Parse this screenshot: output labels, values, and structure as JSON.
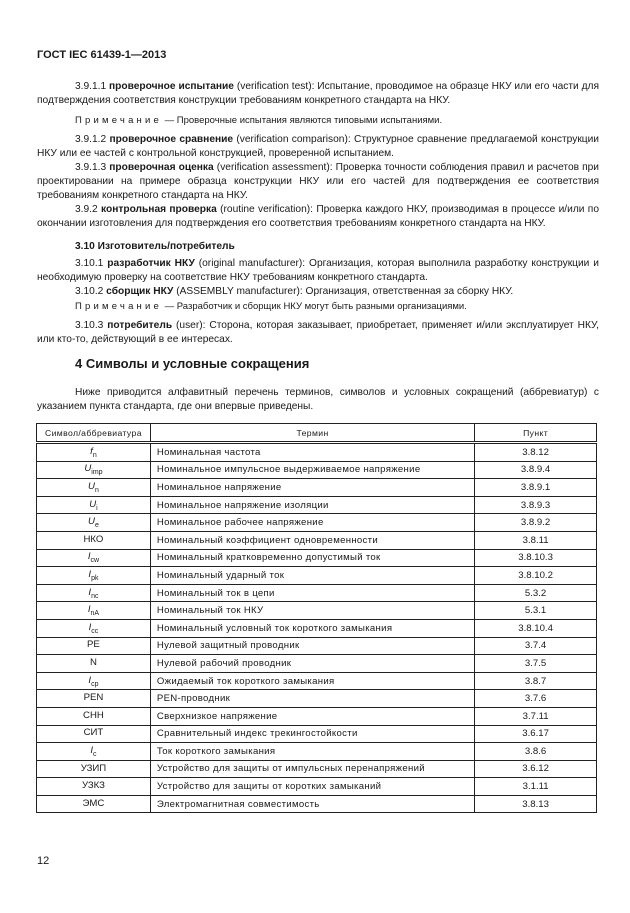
{
  "header": "ГОСТ IEC 61439-1—2013",
  "paragraphs": {
    "p3911": {
      "num": "3.9.1.1",
      "term": "проверочное испытание",
      "text": " (verification test): Испытание, проводимое на образце НКУ или его части для подтверждения соответствия конструкции требованиям конкретного стандарта на НКУ."
    },
    "note1": {
      "label": "Примечание",
      "text": " — Проверочные испытания являются типовыми испытаниями."
    },
    "p3912": {
      "num": "3.9.1.2",
      "term": "проверочное сравнение",
      "text": " (verification comparison): Структурное сравнение предлагаемой конструкции НКУ или ее частей с контрольной конструкцией, проверенной испытанием."
    },
    "p3913": {
      "num": "3.9.1.3",
      "term": "проверочная оценка",
      "text": " (verification assessment): Проверка точности соблюдения правил и расчетов при проектировании на примере образца конструкции НКУ или его частей для подтверждения ее соответствия требованиям конкретного стандарта на НКУ."
    },
    "p392": {
      "num": "3.9.2",
      "term": "контрольная проверка",
      "text": " (routine verification): Проверка каждого НКУ, производимая в процессе и/или по окончании изготовления для подтверждения его соответствия требованиям конкретного стандарта на НКУ."
    },
    "h310": "3.10 Изготовитель/потребитель",
    "p3101": {
      "num": "3.10.1",
      "term": "разработчик НКУ",
      "text": " (original manufacturer): Организация, которая выполнила разработку конструкции и необходимую проверку на соответствие НКУ требованиям конкретного стандарта."
    },
    "p3102": {
      "num": "3.10.2",
      "term": "сборщик НКУ",
      "text": " (ASSEMBLY manufacturer): Организация, ответственная за сборку НКУ."
    },
    "note2": {
      "label": "Примечание",
      "text": " — Разработчик и сборщик НКУ могут быть разными организациями."
    },
    "p3103": {
      "num": "3.10.3",
      "term": "потребитель",
      "text": " (user): Сторона, которая заказывает, приобретает, применяет и/или эксплуатирует НКУ, или кто-то, действующий в ее интересах."
    }
  },
  "section4": {
    "title": "4 Символы и условные сокращения",
    "intro": "Ниже приводится алфавитный перечень терминов, символов и условных сокращений (аббревиатур) с указанием пункта стандарта, где они впервые приведены."
  },
  "table": {
    "headers": [
      "Символ/аббревиатура",
      "Термин",
      "Пункт"
    ],
    "rows": [
      {
        "sym": "f",
        "sub": "n",
        "term": "Номинальная частота",
        "ref": "3.8.12"
      },
      {
        "sym": "U",
        "sub": "imp",
        "term": "Номинальное импульсное выдерживаемое напряжение",
        "ref": "3.8.9.4"
      },
      {
        "sym": "U",
        "sub": "n",
        "term": "Номинальное напряжение",
        "ref": "3.8.9.1"
      },
      {
        "sym": "U",
        "sub": "i",
        "term": "Номинальное напряжение изоляции",
        "ref": "3.8.9.3"
      },
      {
        "sym": "U",
        "sub": "e",
        "term": "Номинальное рабочее напряжение",
        "ref": "3.8.9.2"
      },
      {
        "sym": "НКО",
        "sub": "",
        "term": "Номинальный коэффициент одновременности",
        "ref": "3.8.11"
      },
      {
        "sym": "I",
        "sub": "cw",
        "term": "Номинальный кратковременно допустимый ток",
        "ref": "3.8.10.3"
      },
      {
        "sym": "I",
        "sub": "pk",
        "term": "Номинальный ударный ток",
        "ref": "3.8.10.2"
      },
      {
        "sym": "I",
        "sub": "nc",
        "term": "Номинальный ток в цепи",
        "ref": "5.3.2"
      },
      {
        "sym": "I",
        "sub": "nA",
        "term": "Номинальный ток НКУ",
        "ref": "5.3.1"
      },
      {
        "sym": "I",
        "sub": "cc",
        "term": "Номинальный условный ток короткого замыкания",
        "ref": "3.8.10.4"
      },
      {
        "sym": "PE",
        "sub": "",
        "term": "Нулевой защитный проводник",
        "ref": "3.7.4"
      },
      {
        "sym": "N",
        "sub": "",
        "term": "Нулевой рабочий проводник",
        "ref": "3.7.5"
      },
      {
        "sym": "I",
        "sub": "cp",
        "term": "Ожидаемый ток короткого замыкания",
        "ref": "3.8.7"
      },
      {
        "sym": "PEN",
        "sub": "",
        "term": "PEN-проводник",
        "ref": "3.7.6"
      },
      {
        "sym": "СНН",
        "sub": "",
        "term": "Сверхнизкое напряжение",
        "ref": "3.7.11"
      },
      {
        "sym": "СИТ",
        "sub": "",
        "term": "Сравнительный индекс трекингостойкости",
        "ref": "3.6.17"
      },
      {
        "sym": "I",
        "sub": "c",
        "term": "Ток короткого замыкания",
        "ref": "3.8.6"
      },
      {
        "sym": "УЗИП",
        "sub": "",
        "term": "Устройство для защиты от импульсных перенапряжений",
        "ref": "3.6.12"
      },
      {
        "sym": "УЗКЗ",
        "sub": "",
        "term": "Устройство для защиты от коротких замыканий",
        "ref": "3.1.11"
      },
      {
        "sym": "ЭМС",
        "sub": "",
        "term": "Электромагнитная совместимость",
        "ref": "3.8.13"
      }
    ]
  },
  "page_number": "12"
}
